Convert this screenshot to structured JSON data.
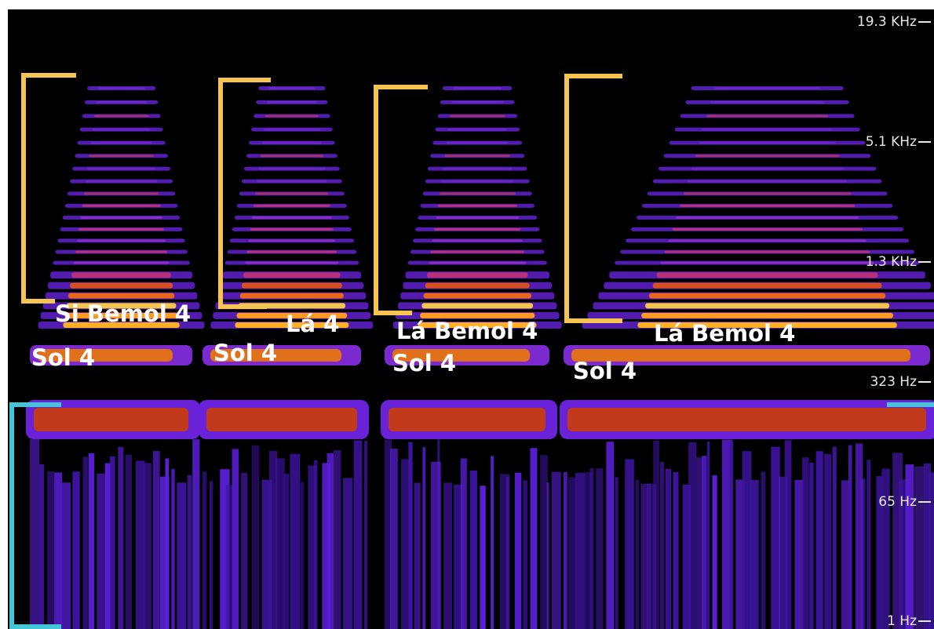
{
  "frequency_labels": [
    "19.3  KHz",
    "5.1  KHz",
    "1.3  KHz",
    "323  Hz",
    "65  Hz",
    "1  Hz"
  ],
  "note_labels": [
    "Si Bemol 4",
    "Sol 4",
    "Lá 4",
    "Sol 4",
    "Lá Bemol 4",
    "Sol 4",
    "Lá Bemol 4",
    "Sol 4"
  ]
}
